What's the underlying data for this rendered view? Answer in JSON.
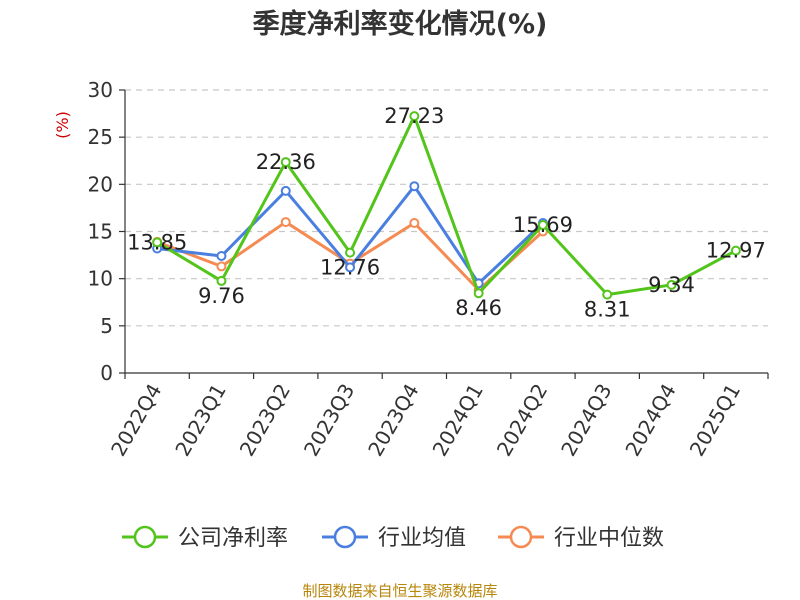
{
  "chart_data": {
    "type": "line",
    "title": "季度净利率变化情况(%)",
    "ylabel": "(%)",
    "xlabel": "",
    "ylim": [
      0,
      30
    ],
    "yticks": [
      0,
      5,
      10,
      15,
      20,
      25,
      30
    ],
    "grid": true,
    "legend_position": "bottom",
    "categories": [
      "2022Q4",
      "2023Q1",
      "2023Q2",
      "2023Q3",
      "2023Q4",
      "2024Q1",
      "2024Q2",
      "2024Q3",
      "2024Q4",
      "2025Q1"
    ],
    "series": [
      {
        "name": "公司净利率",
        "color": "#52c41a",
        "values": [
          13.85,
          9.76,
          22.36,
          12.76,
          27.23,
          8.46,
          15.69,
          8.31,
          9.34,
          12.97
        ],
        "data_labels": true
      },
      {
        "name": "行业均值",
        "color": "#4a7fe0",
        "values": [
          13.2,
          12.4,
          19.3,
          11.2,
          19.8,
          9.5,
          15.9,
          null,
          null,
          null
        ],
        "data_labels": false
      },
      {
        "name": "行业中位数",
        "color": "#f58a52",
        "values": [
          13.9,
          11.3,
          16.0,
          11.6,
          15.9,
          8.8,
          15.0,
          null,
          null,
          null
        ],
        "data_labels": false
      }
    ],
    "source": "制图数据来自恒生聚源数据库"
  }
}
